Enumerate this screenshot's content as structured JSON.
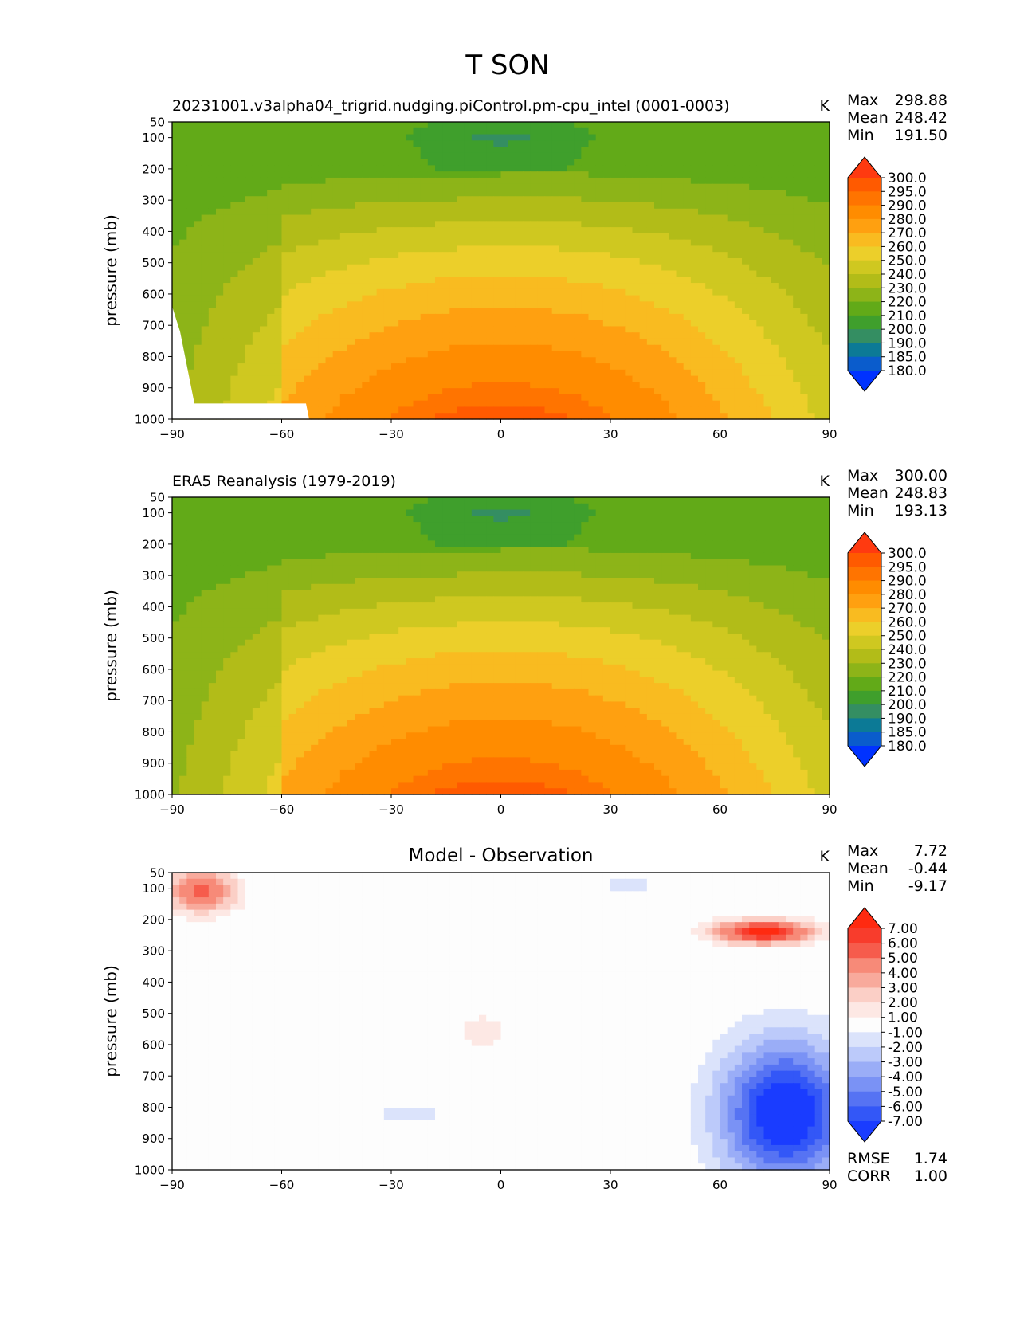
{
  "title": "T SON",
  "chart_data": [
    {
      "type": "heatmap",
      "subtitle": "20231001.v3alpha04_trigrid.nudging.piControl.pm-cpu_intel (0001-0003)",
      "units": "K",
      "ylabel": "pressure (mb)",
      "xlim": [
        -90,
        90
      ],
      "ylim": [
        1000,
        50
      ],
      "xticks": [
        "−90",
        "−60",
        "−30",
        "0",
        "30",
        "60",
        "90"
      ],
      "yticks": [
        "50",
        "100",
        "200",
        "300",
        "400",
        "500",
        "600",
        "700",
        "800",
        "900",
        "1000"
      ],
      "stats": [
        {
          "label": "Max",
          "value": "298.88"
        },
        {
          "label": "Mean",
          "value": "248.42"
        },
        {
          "label": "Min",
          "value": "191.50"
        }
      ],
      "colorbar": {
        "labels": [
          "300.0",
          "295.0",
          "290.0",
          "280.0",
          "270.0",
          "260.0",
          "250.0",
          "240.0",
          "230.0",
          "220.0",
          "210.0",
          "200.0",
          "190.0",
          "185.0",
          "180.0"
        ],
        "colors": [
          "#ff3a10",
          "#ff5a00",
          "#ff7400",
          "#ff8c00",
          "#ffa010",
          "#f9bb20",
          "#eccf2a",
          "#cfc820",
          "#b2bc18",
          "#8db418",
          "#62aa18",
          "#3f9f2c",
          "#348e62",
          "#0c7a96",
          "#0a5ccc",
          "#0032ff"
        ]
      },
      "contour_levels": [
        180,
        185,
        190,
        200,
        210,
        220,
        230,
        240,
        250,
        260,
        270,
        280,
        290,
        295,
        300
      ]
    },
    {
      "type": "heatmap",
      "subtitle": "ERA5 Reanalysis (1979-2019)",
      "units": "K",
      "ylabel": "pressure (mb)",
      "xlim": [
        -90,
        90
      ],
      "ylim": [
        1000,
        50
      ],
      "xticks": [
        "−90",
        "−60",
        "−30",
        "0",
        "30",
        "60",
        "90"
      ],
      "yticks": [
        "50",
        "100",
        "200",
        "300",
        "400",
        "500",
        "600",
        "700",
        "800",
        "900",
        "1000"
      ],
      "stats": [
        {
          "label": "Max",
          "value": "300.00"
        },
        {
          "label": "Mean",
          "value": "248.83"
        },
        {
          "label": "Min",
          "value": "193.13"
        }
      ],
      "colorbar": {
        "labels": [
          "300.0",
          "295.0",
          "290.0",
          "280.0",
          "270.0",
          "260.0",
          "250.0",
          "240.0",
          "230.0",
          "220.0",
          "210.0",
          "200.0",
          "190.0",
          "185.0",
          "180.0"
        ],
        "colors": [
          "#ff3a10",
          "#ff5a00",
          "#ff7400",
          "#ff8c00",
          "#ffa010",
          "#f9bb20",
          "#eccf2a",
          "#cfc820",
          "#b2bc18",
          "#8db418",
          "#62aa18",
          "#3f9f2c",
          "#348e62",
          "#0c7a96",
          "#0a5ccc",
          "#0032ff"
        ]
      },
      "contour_levels": [
        180,
        185,
        190,
        200,
        210,
        220,
        230,
        240,
        250,
        260,
        270,
        280,
        290,
        295,
        300
      ]
    },
    {
      "type": "heatmap",
      "subtitle": "Model - Observation",
      "units": "K",
      "ylabel": "pressure (mb)",
      "xlim": [
        -90,
        90
      ],
      "ylim": [
        1000,
        50
      ],
      "xticks": [
        "−90",
        "−60",
        "−30",
        "0",
        "30",
        "60",
        "90"
      ],
      "yticks": [
        "50",
        "100",
        "200",
        "300",
        "400",
        "500",
        "600",
        "700",
        "800",
        "900",
        "1000"
      ],
      "stats": [
        {
          "label": "Max",
          "value": "7.72"
        },
        {
          "label": "Mean",
          "value": "-0.44"
        },
        {
          "label": "Min",
          "value": "-9.17"
        }
      ],
      "extra_stats": [
        {
          "label": "RMSE",
          "value": "1.74"
        },
        {
          "label": "CORR",
          "value": "1.00"
        }
      ],
      "colorbar": {
        "labels": [
          "7.00",
          "6.00",
          "5.00",
          "4.00",
          "3.00",
          "2.00",
          "1.00",
          "-1.00",
          "-2.00",
          "-3.00",
          "-4.00",
          "-5.00",
          "-6.00",
          "-7.00"
        ],
        "colors": [
          "#ff2a10",
          "#f83c2c",
          "#f65c4c",
          "#f78a78",
          "#f8aa9c",
          "#fbcfc6",
          "#fde8e4",
          "#fdfdfd",
          "#dbe3fb",
          "#bccafa",
          "#9aadf7",
          "#7a92f5",
          "#5673f3",
          "#3357f7",
          "#1a3cff"
        ]
      },
      "contour_levels": [
        -7,
        -6,
        -5,
        -4,
        -3,
        -2,
        -1,
        1,
        2,
        3,
        4,
        5,
        6,
        7
      ]
    }
  ]
}
